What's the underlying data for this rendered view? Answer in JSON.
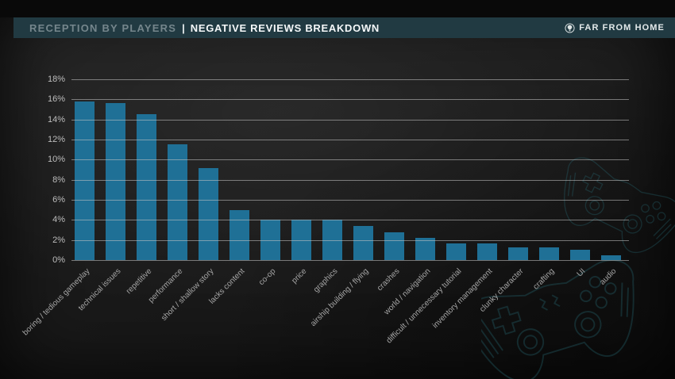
{
  "header": {
    "section": "RECEPTION BY PLAYERS",
    "divider": "|",
    "title": "NEGATIVE REVIEWS BREAKDOWN",
    "brand": "FAR FROM HOME"
  },
  "icons": {
    "brand": "airship-logo-icon",
    "background": "controller-sketch-icon"
  },
  "colors": {
    "bar": "#1f7096",
    "header_band": "#213a42",
    "sketch_accent": "#2b7e8a",
    "top_strip": "#090909"
  },
  "chart_data": {
    "type": "bar",
    "title": "Negative Reviews Breakdown",
    "xlabel": "",
    "ylabel": "",
    "unit": "%",
    "ylim": [
      0,
      18
    ],
    "ytick_step": 2,
    "yticks": [
      "18%",
      "16%",
      "14%",
      "12%",
      "10%",
      "8%",
      "6%",
      "4%",
      "2%",
      "0%"
    ],
    "grid": true,
    "legend": "none",
    "categories": [
      "boring / tedious gameplay",
      "technical issues",
      "repetitive",
      "performance",
      "short / shallow story",
      "lacks content",
      "co-op",
      "price",
      "graphics",
      "airship building / flying",
      "crashes",
      "world / navigation",
      "difficult / unnecessary tutorial",
      "inventory management",
      "clunky character",
      "crafting",
      "UI",
      "audio"
    ],
    "values": [
      15.8,
      15.6,
      14.5,
      11.5,
      9.2,
      5.0,
      4.0,
      4.0,
      4.0,
      3.4,
      2.8,
      2.2,
      1.7,
      1.7,
      1.3,
      1.3,
      1.0,
      0.5
    ]
  }
}
